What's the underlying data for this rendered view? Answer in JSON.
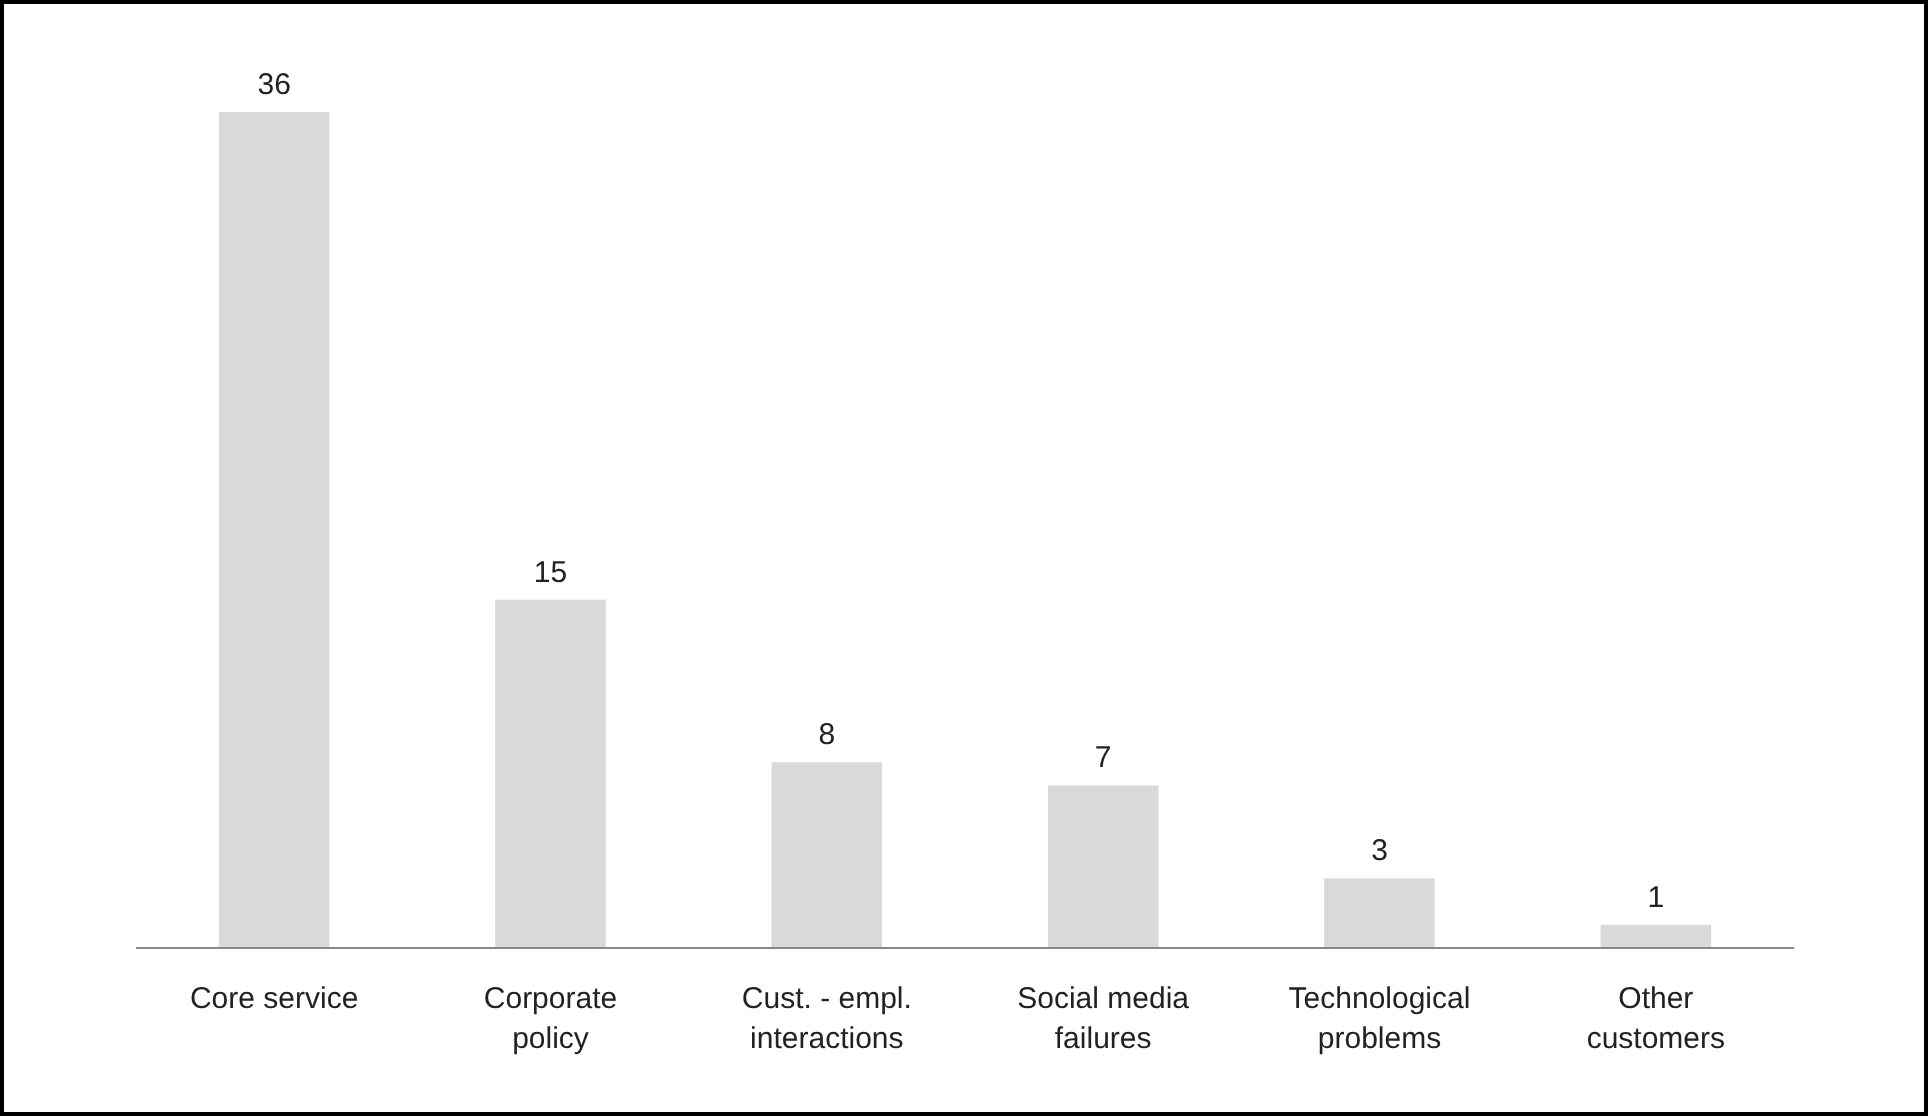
{
  "chart_data": {
    "type": "bar",
    "categories": [
      "Core service",
      "Corporate policy",
      "Cust. - empl. interactions",
      "Social media failures",
      "Technological problems",
      "Other customers"
    ],
    "values": [
      36,
      15,
      8,
      7,
      3,
      1
    ],
    "color": "#d9d9d9",
    "data_labels": true
  }
}
